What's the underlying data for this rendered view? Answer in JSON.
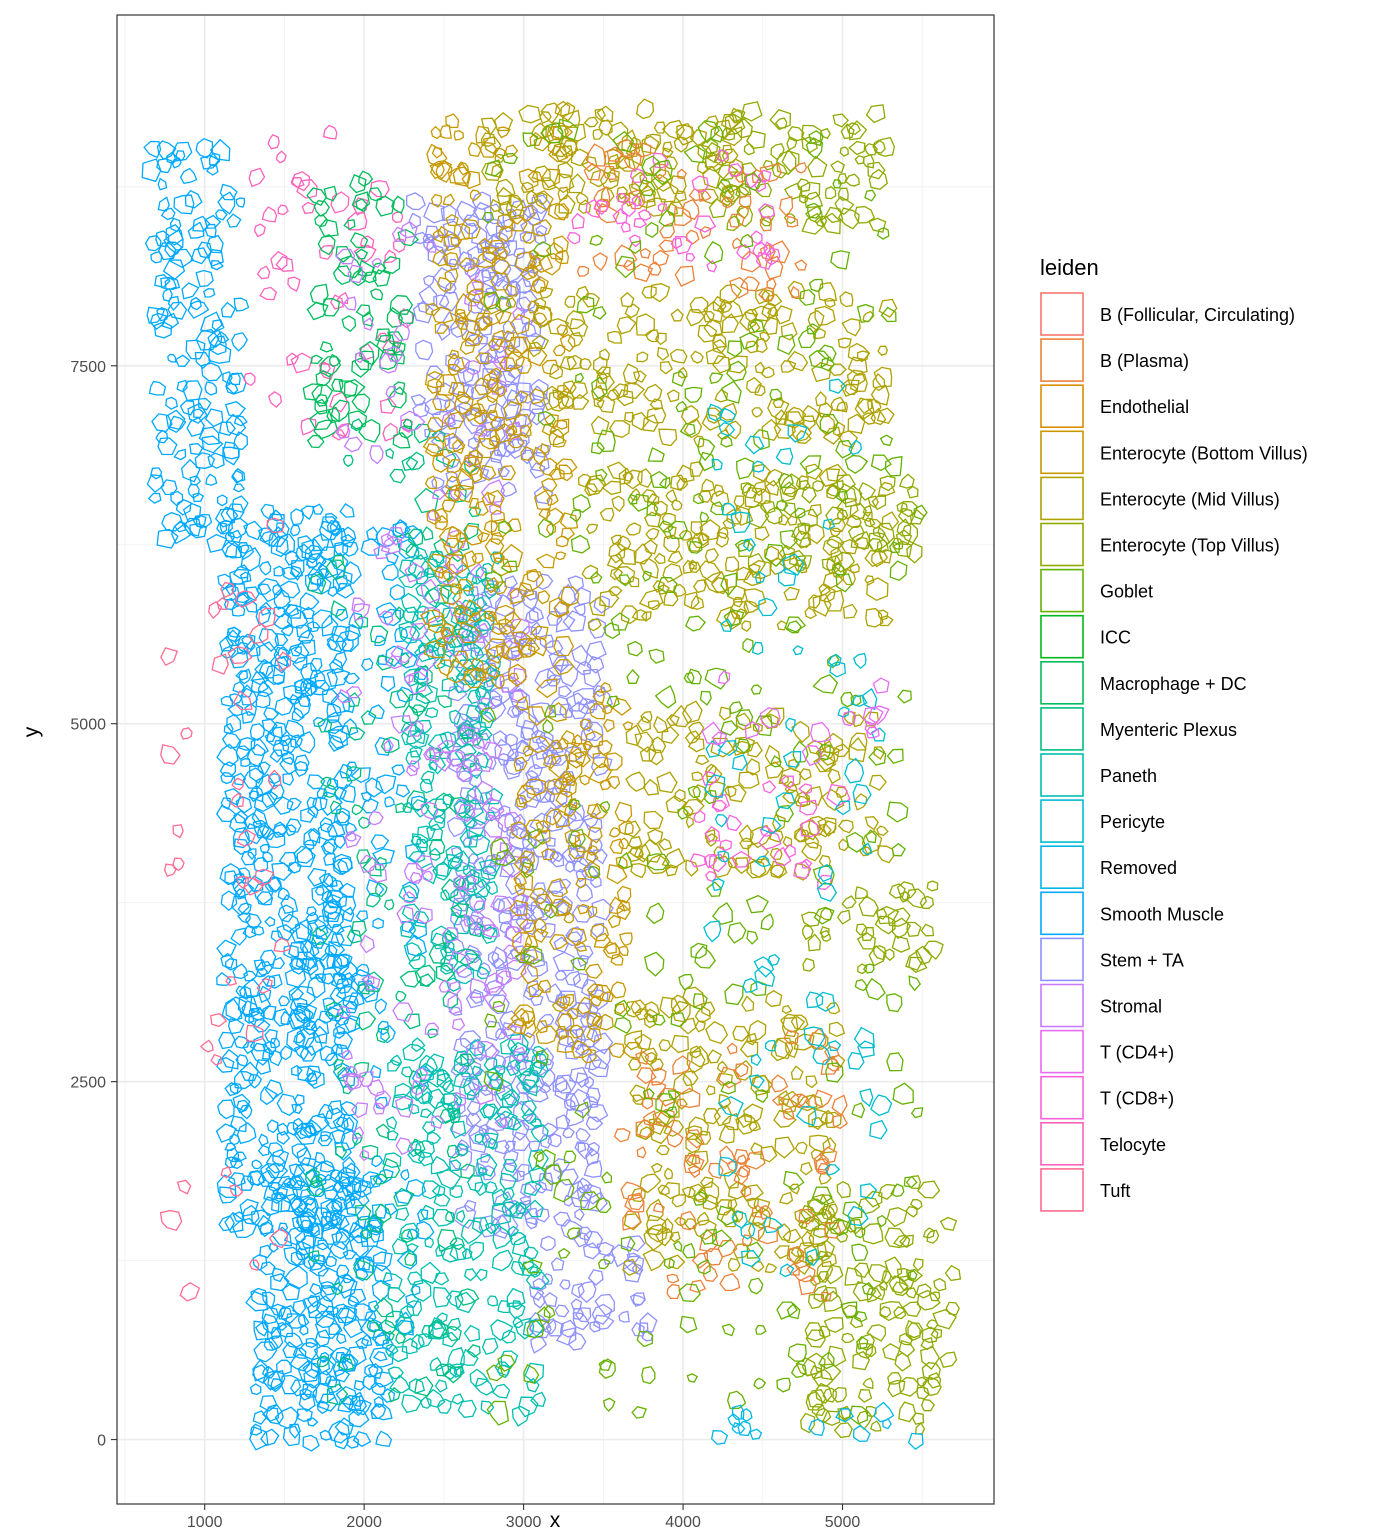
{
  "chart_data": {
    "type": "scatter",
    "mark": "cell-polygon-outline",
    "xlabel": "x",
    "ylabel": "y",
    "xlim": [
      450,
      5950
    ],
    "ylim": [
      -450,
      9950
    ],
    "x_ticks": [
      1000,
      2000,
      3000,
      4000,
      5000
    ],
    "y_ticks": [
      0,
      2500,
      5000,
      7500
    ],
    "grid": true,
    "legend_position": "right",
    "legend_title": "leiden",
    "categories": [
      {
        "name": "B (Follicular, Circulating)",
        "color": "#F8766D"
      },
      {
        "name": "B (Plasma)",
        "color": "#EC8239"
      },
      {
        "name": "Endothelial",
        "color": "#DB8E00"
      },
      {
        "name": "Enterocyte (Bottom Villus)",
        "color": "#C79800"
      },
      {
        "name": "Enterocyte (Mid Villus)",
        "color": "#AEA200"
      },
      {
        "name": "Enterocyte (Top Villus)",
        "color": "#8FAA00"
      },
      {
        "name": "Goblet",
        "color": "#64B200"
      },
      {
        "name": "ICC",
        "color": "#00B81B"
      },
      {
        "name": "Macrophage + DC",
        "color": "#00BD5C"
      },
      {
        "name": "Myenteric Plexus",
        "color": "#00BF7D"
      },
      {
        "name": "Paneth",
        "color": "#00C0AF"
      },
      {
        "name": "Pericyte",
        "color": "#00BDD0"
      },
      {
        "name": "Removed",
        "color": "#00B8E7"
      },
      {
        "name": "Smooth Muscle",
        "color": "#00A9FF"
      },
      {
        "name": "Stem + TA",
        "color": "#8F91FF"
      },
      {
        "name": "Stromal",
        "color": "#C77CFF"
      },
      {
        "name": "T (CD4+)",
        "color": "#E76BF3"
      },
      {
        "name": "T (CD8+)",
        "color": "#FA62DB"
      },
      {
        "name": "Telocyte",
        "color": "#FF62BC"
      },
      {
        "name": "Tuft",
        "color": "#FF6C91"
      }
    ],
    "regions": [
      {
        "category": "Smooth Muscle",
        "x": [
          700,
          1250
        ],
        "y": [
          6200,
          9000
        ],
        "density": 0.3
      },
      {
        "category": "Smooth Muscle",
        "x": [
          1150,
          1900
        ],
        "y": [
          1500,
          6500
        ],
        "density": 0.45
      },
      {
        "category": "Smooth Muscle",
        "x": [
          1350,
          2100
        ],
        "y": [
          0,
          1800
        ],
        "density": 0.45
      },
      {
        "category": "Smooth Muscle",
        "x": [
          1600,
          2400
        ],
        "y": [
          200,
          6500
        ],
        "density": 0.1
      },
      {
        "category": "Tuft",
        "x": [
          800,
          1500
        ],
        "y": [
          1000,
          6500
        ],
        "density": 0.04
      },
      {
        "category": "Telocyte",
        "x": [
          1300,
          2300
        ],
        "y": [
          7000,
          9200
        ],
        "density": 0.08
      },
      {
        "category": "Stem + TA",
        "x": [
          2350,
          3100
        ],
        "y": [
          6600,
          8700
        ],
        "density": 0.35
      },
      {
        "category": "Stem + TA",
        "x": [
          2600,
          3500
        ],
        "y": [
          1500,
          6000
        ],
        "density": 0.35
      },
      {
        "category": "Stem + TA",
        "x": [
          3100,
          3800
        ],
        "y": [
          700,
          1500
        ],
        "density": 0.35
      },
      {
        "category": "Macrophage + DC",
        "x": [
          1700,
          2300
        ],
        "y": [
          7000,
          8800
        ],
        "density": 0.25
      },
      {
        "category": "Paneth",
        "x": [
          2300,
          2800
        ],
        "y": [
          3200,
          6200
        ],
        "density": 0.3
      },
      {
        "category": "Paneth",
        "x": [
          2200,
          3100
        ],
        "y": [
          200,
          2800
        ],
        "density": 0.3
      },
      {
        "category": "Myenteric Plexus",
        "x": [
          1700,
          2700
        ],
        "y": [
          300,
          7200
        ],
        "density": 0.08
      },
      {
        "category": "Stromal",
        "x": [
          1900,
          3000
        ],
        "y": [
          2000,
          8500
        ],
        "density": 0.08
      },
      {
        "category": "Enterocyte (Bottom Villus)",
        "x": [
          2450,
          3300
        ],
        "y": [
          5300,
          9300
        ],
        "density": 0.3
      },
      {
        "category": "Enterocyte (Bottom Villus)",
        "x": [
          3000,
          3700
        ],
        "y": [
          2700,
          5300
        ],
        "density": 0.25
      },
      {
        "category": "Enterocyte (Mid Villus)",
        "x": [
          2800,
          4400
        ],
        "y": [
          8600,
          9300
        ],
        "density": 0.35
      },
      {
        "category": "Enterocyte (Mid Villus)",
        "x": [
          3100,
          5300
        ],
        "y": [
          7000,
          8000
        ],
        "density": 0.25
      },
      {
        "category": "Enterocyte (Mid Villus)",
        "x": [
          3400,
          5300
        ],
        "y": [
          5700,
          6800
        ],
        "density": 0.25
      },
      {
        "category": "Enterocyte (Mid Villus)",
        "x": [
          3700,
          5300
        ],
        "y": [
          4000,
          5100
        ],
        "density": 0.25
      },
      {
        "category": "Enterocyte (Mid Villus)",
        "x": [
          3700,
          5000
        ],
        "y": [
          1200,
          3100
        ],
        "density": 0.25
      },
      {
        "category": "Enterocyte (Top Villus)",
        "x": [
          4200,
          5300
        ],
        "y": [
          8500,
          9300
        ],
        "density": 0.3
      },
      {
        "category": "Enterocyte (Top Villus)",
        "x": [
          4400,
          5500
        ],
        "y": [
          6100,
          6700
        ],
        "density": 0.25
      },
      {
        "category": "Enterocyte (Top Villus)",
        "x": [
          4800,
          5600
        ],
        "y": [
          3300,
          3900
        ],
        "density": 0.35
      },
      {
        "category": "Enterocyte (Top Villus)",
        "x": [
          4800,
          5700
        ],
        "y": [
          100,
          1800
        ],
        "density": 0.3
      },
      {
        "category": "B (Plasma)",
        "x": [
          3400,
          4800
        ],
        "y": [
          8000,
          9000
        ],
        "density": 0.12
      },
      {
        "category": "B (Plasma)",
        "x": [
          3600,
          5000
        ],
        "y": [
          1000,
          2800
        ],
        "density": 0.1
      },
      {
        "category": "T (CD8+)",
        "x": [
          3300,
          4600
        ],
        "y": [
          8200,
          9000
        ],
        "density": 0.1
      },
      {
        "category": "T (CD8+)",
        "x": [
          4100,
          5000
        ],
        "y": [
          3900,
          4600
        ],
        "density": 0.1
      },
      {
        "category": "Goblet",
        "x": [
          2800,
          5500
        ],
        "y": [
          200,
          9200
        ],
        "density": 0.04
      },
      {
        "category": "Pericyte",
        "x": [
          4200,
          5300
        ],
        "y": [
          1000,
          7500
        ],
        "density": 0.04
      },
      {
        "category": "Removed",
        "x": [
          3800,
          5500
        ],
        "y": [
          0,
          200
        ],
        "density": 0.08
      },
      {
        "category": "T (CD4+)",
        "x": [
          4000,
          5300
        ],
        "y": [
          4800,
          5300
        ],
        "density": 0.08
      }
    ]
  }
}
